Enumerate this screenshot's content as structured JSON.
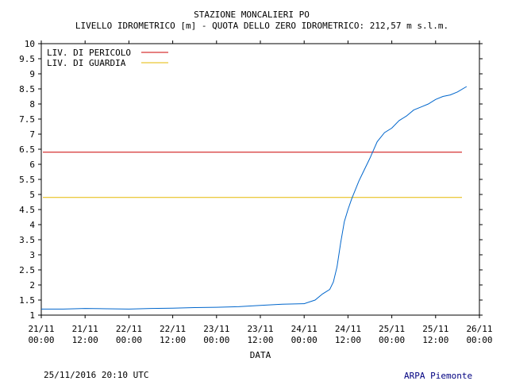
{
  "chart_data": {
    "type": "line",
    "title": "STAZIONE MONCALIERI PO",
    "subtitle": "LIVELLO IDROMETRICO [m] - QUOTA DELLO ZERO IDROMETRICO: 212,57  m s.l.m.",
    "xlabel": "DATA",
    "ylabel": "",
    "ylim": [
      1,
      10
    ],
    "yticks": [
      "1",
      "1.5",
      "2",
      "2.5",
      "3",
      "3.5",
      "4",
      "4.5",
      "5",
      "5.5",
      "6",
      "6.5",
      "7",
      "7.5",
      "8",
      "8.5",
      "9",
      "9.5",
      "10"
    ],
    "xlim_hours": [
      0,
      120
    ],
    "xticks": [
      {
        "date": "21/11",
        "time": "00:00"
      },
      {
        "date": "21/11",
        "time": "12:00"
      },
      {
        "date": "22/11",
        "time": "00:00"
      },
      {
        "date": "22/11",
        "time": "12:00"
      },
      {
        "date": "23/11",
        "time": "00:00"
      },
      {
        "date": "23/11",
        "time": "12:00"
      },
      {
        "date": "24/11",
        "time": "00:00"
      },
      {
        "date": "24/11",
        "time": "12:00"
      },
      {
        "date": "25/11",
        "time": "00:00"
      },
      {
        "date": "25/11",
        "time": "12:00"
      },
      {
        "date": "26/11",
        "time": "00:00"
      }
    ],
    "thresholds": [
      {
        "name": "LIV. DI PERICOLO",
        "value": 6.4,
        "color": "#cc0000"
      },
      {
        "name": "LIV. DI GUARDIA",
        "value": 4.9,
        "color": "#e6b800"
      }
    ],
    "series": [
      {
        "name": "",
        "color": "#0066cc",
        "x_hours": [
          0,
          6,
          12,
          18,
          24,
          30,
          36,
          42,
          48,
          54,
          60,
          66,
          72,
          75,
          77,
          79,
          80,
          81,
          82,
          83,
          84,
          85,
          86,
          87,
          88,
          90,
          92,
          94,
          96,
          98,
          100,
          102,
          104,
          106,
          108,
          110,
          112,
          114,
          116.5
        ],
        "values": [
          1.2,
          1.2,
          1.22,
          1.21,
          1.2,
          1.22,
          1.23,
          1.25,
          1.26,
          1.28,
          1.32,
          1.36,
          1.38,
          1.5,
          1.7,
          1.85,
          2.1,
          2.6,
          3.4,
          4.1,
          4.5,
          4.85,
          5.15,
          5.45,
          5.7,
          6.2,
          6.75,
          7.05,
          7.2,
          7.45,
          7.6,
          7.8,
          7.9,
          8.0,
          8.15,
          8.25,
          8.3,
          8.4,
          8.58
        ]
      }
    ],
    "grid": false,
    "legend": "top-left"
  },
  "footer": {
    "timestamp": "25/11/2016 20:10 UTC",
    "source": "ARPA Piemonte",
    "source_color": "#000080"
  }
}
